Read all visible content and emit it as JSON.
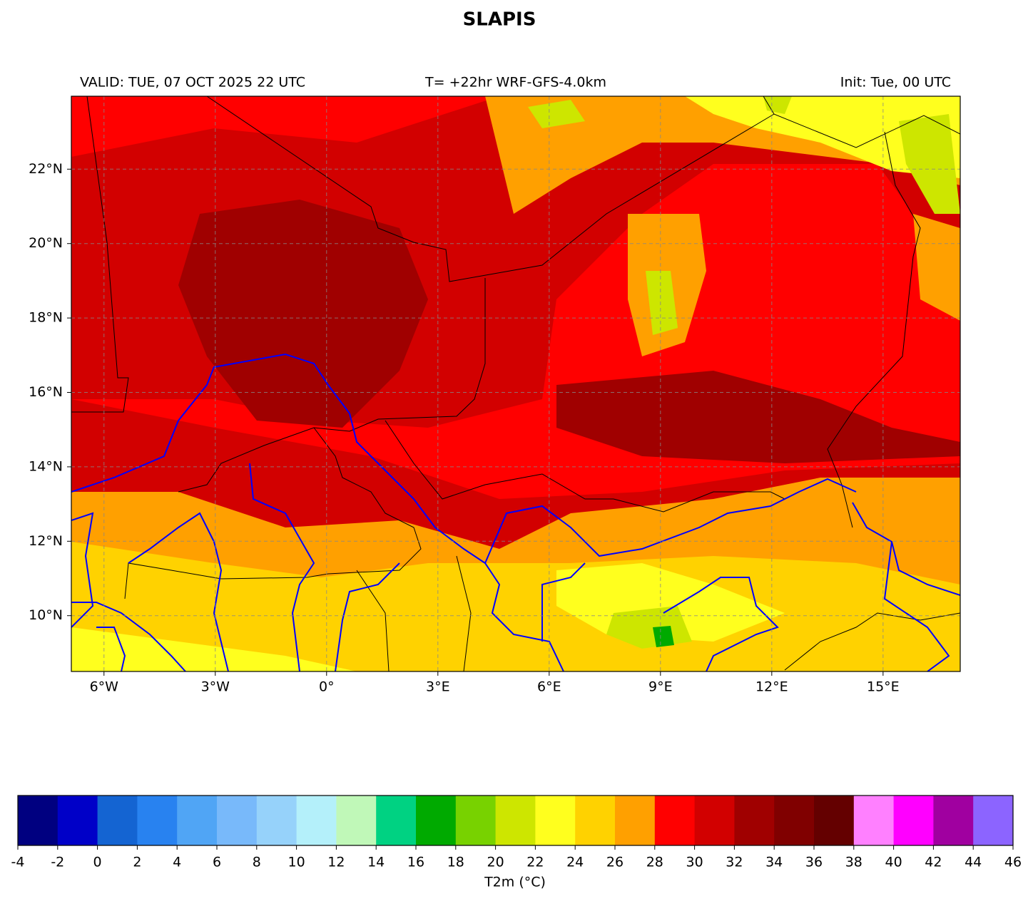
{
  "title": "SLAPIS",
  "header": {
    "valid": "VALID: TUE, 07 OCT 2025 22 UTC",
    "forecast": "T= +22hr WRF-GFS-4.0km",
    "init": "Init: Tue, 00 UTC"
  },
  "map": {
    "xlim": [
      -6.88,
      17.08
    ],
    "ylim": [
      8.5,
      23.96
    ],
    "xticks": [
      {
        "value": -6,
        "label": "6°W"
      },
      {
        "value": -3,
        "label": "3°W"
      },
      {
        "value": 0,
        "label": "0°"
      },
      {
        "value": 3,
        "label": "3°E"
      },
      {
        "value": 6,
        "label": "6°E"
      },
      {
        "value": 9,
        "label": "9°E"
      },
      {
        "value": 12,
        "label": "12°E"
      },
      {
        "value": 15,
        "label": "15°E"
      }
    ],
    "yticks": [
      {
        "value": 10,
        "label": "10°N"
      },
      {
        "value": 12,
        "label": "12°N"
      },
      {
        "value": 14,
        "label": "14°N"
      },
      {
        "value": 16,
        "label": "16°N"
      },
      {
        "value": 18,
        "label": "18°N"
      },
      {
        "value": 20,
        "label": "20°N"
      },
      {
        "value": 22,
        "label": "22°N"
      }
    ],
    "grid": true
  },
  "colorbar": {
    "label": "T2m (°C)",
    "ticks": [
      -4,
      -2,
      0,
      2,
      4,
      6,
      8,
      10,
      12,
      14,
      16,
      18,
      20,
      22,
      24,
      26,
      28,
      30,
      32,
      34,
      36,
      38,
      40,
      42,
      44,
      46
    ],
    "colors": [
      "#000080",
      "#0000c8",
      "#1464d2",
      "#2882f0",
      "#50a5f5",
      "#78b9fa",
      "#96d2fa",
      "#b4f0fa",
      "#c0f8b8",
      "#00d282",
      "#00aa00",
      "#78d200",
      "#cde600",
      "#ffff1e",
      "#ffd200",
      "#ffa000",
      "#ff0000",
      "#d20000",
      "#a00000",
      "#800000",
      "#640000",
      "#ff80ff",
      "#ff00ff",
      "#a000a0",
      "#8c64ff"
    ]
  }
}
